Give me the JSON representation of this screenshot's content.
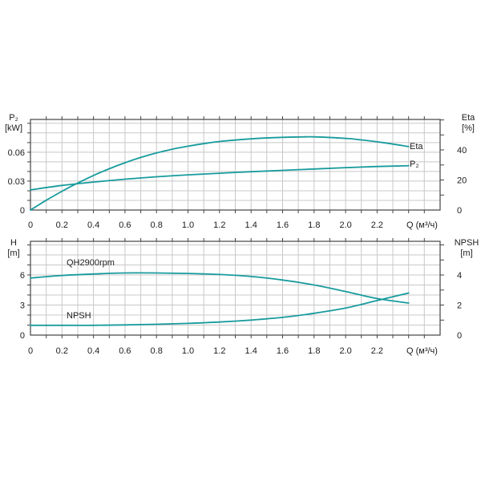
{
  "page": {
    "background": "#ffffff"
  },
  "colors": {
    "curve": "#189b9d",
    "grid": "#c8c8c8",
    "axis": "#434343",
    "text": "#1c1c1c"
  },
  "chart_data": [
    {
      "name": "power-efficiency-chart",
      "type": "line",
      "title": "",
      "x_axis": {
        "label": "Q (м³/ч)",
        "range": [
          0,
          2.6
        ],
        "minor_step": 0.1,
        "tick_values": [
          0,
          0.2,
          0.4,
          0.6,
          0.8,
          1.0,
          1.2,
          1.4,
          1.6,
          1.8,
          2.0,
          2.2
        ],
        "tick_labels": [
          "0",
          "0.2",
          "0.4",
          "0.6",
          "0.8",
          "1.0",
          "1.2",
          "1.4",
          "1.6",
          "1.8",
          "2.0",
          "2.2"
        ]
      },
      "left_axis": {
        "name": "P₂",
        "unit": "[kW]",
        "range": [
          0,
          0.094
        ],
        "minor_step": 0.01,
        "tick_values": [
          0,
          0.03,
          0.06
        ],
        "tick_labels": [
          "0",
          "0.03",
          "0.06"
        ]
      },
      "right_axis": {
        "name": "Eta",
        "unit": "[%]",
        "range": [
          0,
          60.3
        ],
        "minor_step": 10,
        "tick_values": [
          0,
          20,
          40
        ],
        "tick_labels": [
          "0",
          "20",
          "40"
        ]
      },
      "series": [
        {
          "name": "eta",
          "label": "Eta",
          "axis": "right",
          "points": [
            [
              0,
              0
            ],
            [
              0.1,
              6.5
            ],
            [
              0.2,
              12.5
            ],
            [
              0.3,
              18
            ],
            [
              0.4,
              23
            ],
            [
              0.5,
              27.5
            ],
            [
              0.6,
              31.5
            ],
            [
              0.7,
              35
            ],
            [
              0.8,
              38
            ],
            [
              0.9,
              40.5
            ],
            [
              1.0,
              42.5
            ],
            [
              1.1,
              44.2
            ],
            [
              1.2,
              45.6
            ],
            [
              1.4,
              47.4
            ],
            [
              1.6,
              48.4
            ],
            [
              1.8,
              48.7
            ],
            [
              2.0,
              47.7
            ],
            [
              2.1,
              46.7
            ],
            [
              2.2,
              45.4
            ],
            [
              2.3,
              43.9
            ],
            [
              2.4,
              42.2
            ]
          ]
        },
        {
          "name": "p2",
          "label": "P₂",
          "axis": "left",
          "points": [
            [
              0,
              0.021
            ],
            [
              0.2,
              0.0255
            ],
            [
              0.4,
              0.029
            ],
            [
              0.6,
              0.032
            ],
            [
              0.8,
              0.0345
            ],
            [
              1.0,
              0.0365
            ],
            [
              1.2,
              0.0382
            ],
            [
              1.4,
              0.0398
            ],
            [
              1.6,
              0.0412
            ],
            [
              1.8,
              0.0426
            ],
            [
              2.0,
              0.044
            ],
            [
              2.2,
              0.0452
            ],
            [
              2.4,
              0.046
            ]
          ]
        }
      ]
    },
    {
      "name": "head-npsh-chart",
      "type": "line",
      "title": "",
      "x_axis": {
        "label": "Q (м³/ч)",
        "range": [
          0,
          2.6
        ],
        "minor_step": 0.1,
        "tick_values": [
          0,
          0.2,
          0.4,
          0.6,
          0.8,
          1.0,
          1.2,
          1.4,
          1.6,
          1.8,
          2.0,
          2.2
        ],
        "tick_labels": [
          "0",
          "0.2",
          "0.4",
          "0.6",
          "0.8",
          "1.0",
          "1.2",
          "1.4",
          "1.6",
          "1.8",
          "2.0",
          "2.2"
        ]
      },
      "left_axis": {
        "name": "H",
        "unit": "[m]",
        "range": [
          0,
          9.36
        ],
        "minor_step": 1,
        "tick_values": [
          0,
          3,
          6
        ],
        "tick_labels": [
          "0",
          "3",
          "6"
        ]
      },
      "right_axis": {
        "name": "NPSH",
        "unit": "[m]",
        "range": [
          0,
          6.24
        ],
        "minor_step": 1,
        "tick_values": [
          0,
          2,
          4
        ],
        "tick_labels": [
          "0",
          "2",
          "4"
        ]
      },
      "series": [
        {
          "name": "qh",
          "label": "QH2900rpm",
          "axis": "left",
          "points": [
            [
              0,
              5.7
            ],
            [
              0.2,
              5.95
            ],
            [
              0.4,
              6.1
            ],
            [
              0.6,
              6.2
            ],
            [
              0.8,
              6.2
            ],
            [
              1.0,
              6.15
            ],
            [
              1.2,
              6.05
            ],
            [
              1.4,
              5.85
            ],
            [
              1.6,
              5.5
            ],
            [
              1.8,
              5.0
            ],
            [
              2.0,
              4.35
            ],
            [
              2.2,
              3.65
            ],
            [
              2.4,
              3.2
            ]
          ]
        },
        {
          "name": "npsh",
          "label": "NPSH",
          "axis": "right",
          "points": [
            [
              0,
              0.65
            ],
            [
              0.2,
              0.65
            ],
            [
              0.4,
              0.65
            ],
            [
              0.6,
              0.68
            ],
            [
              0.8,
              0.72
            ],
            [
              1.0,
              0.78
            ],
            [
              1.2,
              0.87
            ],
            [
              1.4,
              1.0
            ],
            [
              1.6,
              1.18
            ],
            [
              1.8,
              1.45
            ],
            [
              2.0,
              1.8
            ],
            [
              2.2,
              2.3
            ],
            [
              2.4,
              2.8
            ]
          ]
        }
      ]
    }
  ]
}
